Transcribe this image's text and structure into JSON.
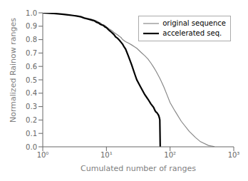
{
  "chart_data": {
    "type": "line",
    "xlabel": "Cumulated number of ranges",
    "ylabel": "Normalized Rainow ranges",
    "log": "x",
    "xlim": [
      1,
      1000
    ],
    "xticks": [
      {
        "value": 1,
        "label": "10⁰"
      },
      {
        "value": 10,
        "label": "10¹"
      },
      {
        "value": 100,
        "label": "10²"
      },
      {
        "value": 1000,
        "label": "10³"
      }
    ],
    "ylim": [
      0,
      1
    ],
    "yticks": [
      {
        "value": 0,
        "label": "0.0"
      },
      0.1,
      0.2,
      0.3,
      0.4,
      0.5,
      0.6,
      0.7,
      0.8,
      0.9,
      {
        "value": 1.0,
        "label": "1.0"
      }
    ],
    "legend": "upper right",
    "series": [
      {
        "name": "original sequence",
        "color": "#888888",
        "x": [
          1,
          1.5,
          2,
          2.5,
          3,
          3.5,
          4,
          4.5,
          5,
          5.5,
          6,
          6.5,
          7,
          7.5,
          8,
          8.5,
          9,
          9.5,
          10,
          11,
          12,
          13,
          14,
          15,
          16,
          17,
          18,
          20,
          22,
          25,
          28,
          30,
          35,
          40,
          45,
          50,
          55,
          60,
          65,
          70,
          75,
          80,
          90,
          100,
          120,
          150,
          200,
          250,
          300,
          400,
          500
        ],
        "values": [
          1.0,
          0.995,
          0.99,
          0.985,
          0.98,
          0.975,
          0.97,
          0.965,
          0.96,
          0.955,
          0.95,
          0.945,
          0.94,
          0.93,
          0.925,
          0.915,
          0.91,
          0.905,
          0.895,
          0.88,
          0.87,
          0.855,
          0.845,
          0.835,
          0.825,
          0.815,
          0.8,
          0.785,
          0.775,
          0.76,
          0.745,
          0.735,
          0.705,
          0.68,
          0.655,
          0.625,
          0.595,
          0.565,
          0.535,
          0.505,
          0.475,
          0.445,
          0.385,
          0.33,
          0.265,
          0.19,
          0.115,
          0.07,
          0.038,
          0.01,
          0.001
        ]
      },
      {
        "name": "accelerated seq.",
        "color": "#000000",
        "x": [
          1,
          1.5,
          2,
          2.5,
          3,
          3.5,
          4,
          4.5,
          5,
          5.5,
          6,
          6.5,
          7,
          7.5,
          8,
          8.5,
          9,
          9.5,
          10,
          11,
          12,
          13,
          14,
          15,
          16,
          17,
          18,
          19,
          20,
          22,
          25,
          28,
          30,
          35,
          40,
          45,
          50,
          55,
          58,
          60,
          62,
          63,
          64,
          65,
          66,
          67,
          68,
          69,
          70
        ],
        "values": [
          1.0,
          0.995,
          0.99,
          0.985,
          0.98,
          0.975,
          0.97,
          0.96,
          0.955,
          0.95,
          0.945,
          0.94,
          0.93,
          0.925,
          0.915,
          0.91,
          0.905,
          0.895,
          0.89,
          0.87,
          0.855,
          0.84,
          0.82,
          0.81,
          0.795,
          0.78,
          0.765,
          0.745,
          0.73,
          0.68,
          0.61,
          0.54,
          0.5,
          0.44,
          0.39,
          0.355,
          0.32,
          0.295,
          0.27,
          0.26,
          0.255,
          0.25,
          0.245,
          0.24,
          0.235,
          0.225,
          0.215,
          0.2,
          0.0
        ]
      }
    ]
  }
}
